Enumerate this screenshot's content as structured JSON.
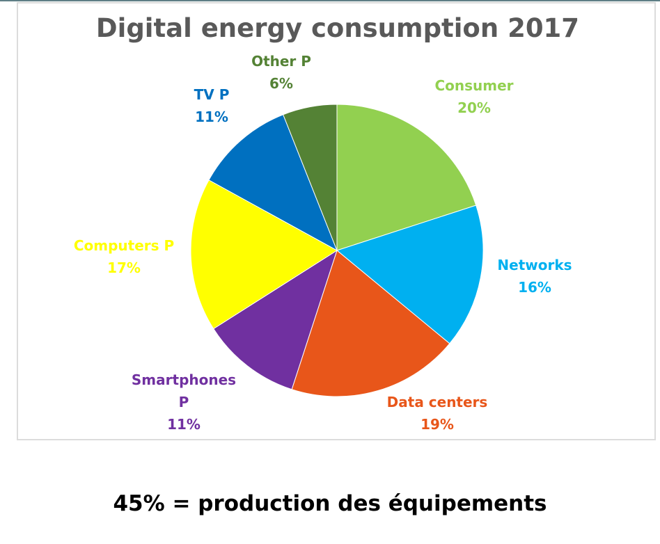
{
  "chart_data": {
    "type": "pie",
    "title": "Digital energy consumption 2017",
    "slices": [
      {
        "label": [
          "Consumer"
        ],
        "value": 20,
        "value_label": "20%",
        "color": "#92d050"
      },
      {
        "label": [
          "Networks"
        ],
        "value": 16,
        "value_label": "16%",
        "color": "#00b0f0"
      },
      {
        "label": [
          "Data centers"
        ],
        "value": 19,
        "value_label": "19%",
        "color": "#e8561a"
      },
      {
        "label": [
          "Smartphones",
          "P"
        ],
        "value": 11,
        "value_label": "11%",
        "color": "#7030a0"
      },
      {
        "label": [
          "Computers P"
        ],
        "value": 17,
        "value_label": "17%",
        "color": "#ffff00"
      },
      {
        "label": [
          "TV P"
        ],
        "value": 11,
        "value_label": "11%",
        "color": "#0070c0"
      },
      {
        "label": [
          "Other P"
        ],
        "value": 6,
        "value_label": "6%",
        "color": "#548235"
      }
    ],
    "label_colors": [
      "#92d050",
      "#00b0f0",
      "#e8561a",
      "#7030a0",
      "#ffff00",
      "#0070c0",
      "#548235"
    ]
  },
  "footnote": "45% =  production des équipements"
}
